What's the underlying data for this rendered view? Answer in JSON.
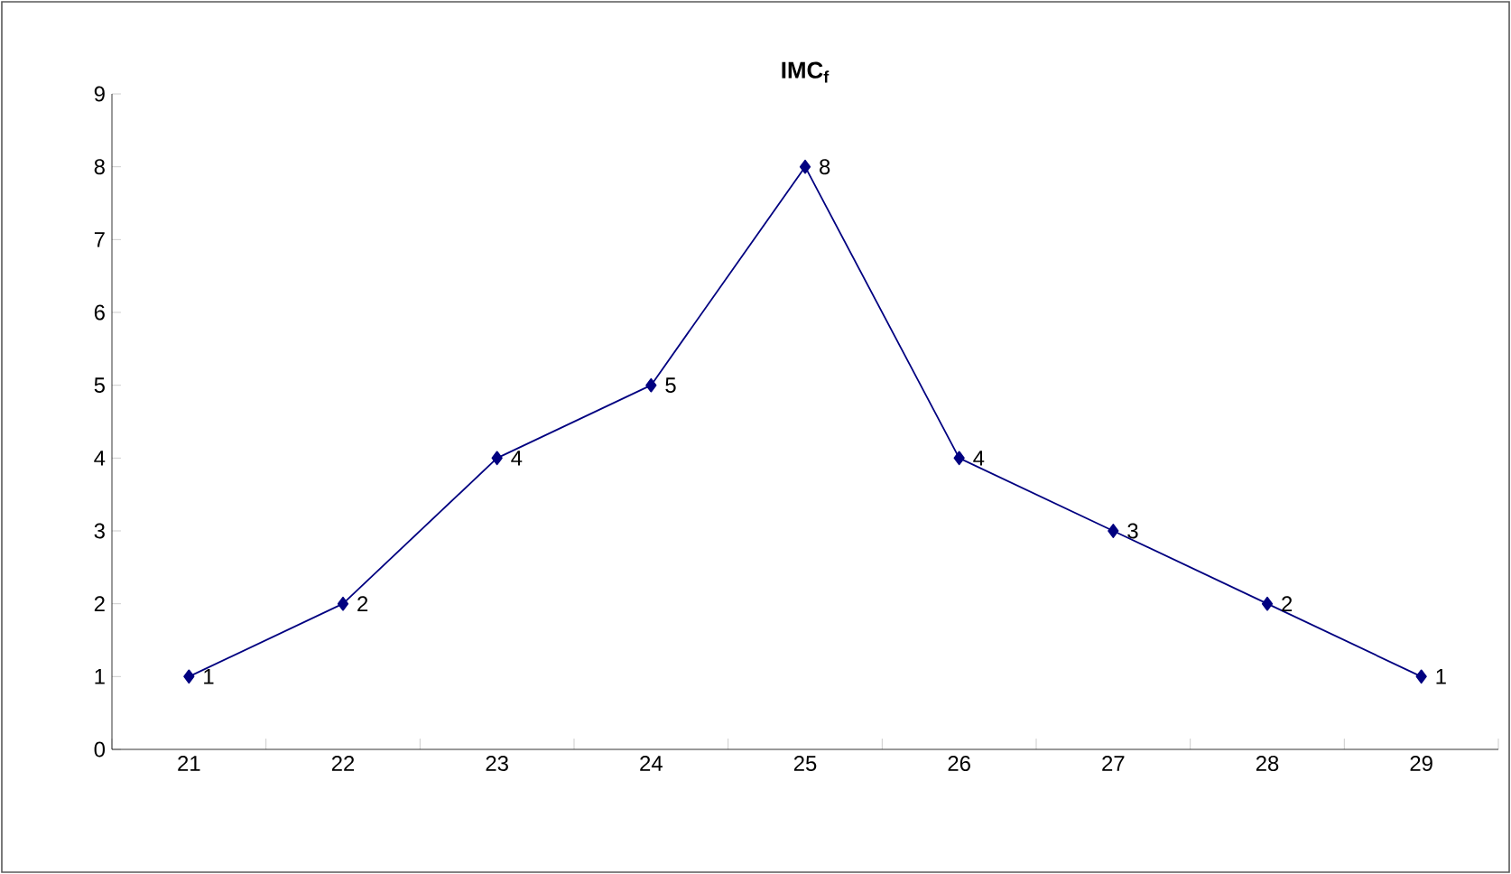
{
  "chart_data": {
    "type": "line",
    "title": "IMC$_{f}$",
    "categories": [
      "21",
      "22",
      "23",
      "24",
      "25",
      "26",
      "27",
      "28",
      "29"
    ],
    "values": [
      1,
      2,
      4,
      5,
      8,
      4,
      3,
      2,
      1
    ],
    "color": "#000080",
    "marker": "diamond",
    "data_labels": true,
    "grid": false,
    "ylim": [
      0,
      9
    ],
    "yticks": [
      0,
      1,
      2,
      3,
      4,
      5,
      6,
      7,
      8,
      9
    ]
  }
}
